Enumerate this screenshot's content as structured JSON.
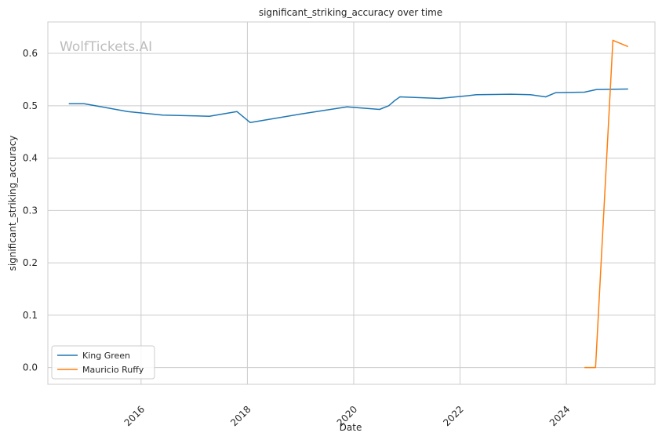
{
  "chart_data": {
    "type": "line",
    "title": "significant_striking_accuracy over time",
    "xlabel": "Date",
    "ylabel": "significant_striking_accuracy",
    "watermark": "WolfTickets.AI",
    "x_ticks": [
      "2016",
      "2018",
      "2020",
      "2022",
      "2024"
    ],
    "y_ticks": [
      "0.0",
      "0.1",
      "0.2",
      "0.3",
      "0.4",
      "0.5",
      "0.6"
    ],
    "xlim": [
      "2014-04-01",
      "2025-09-01"
    ],
    "ylim": [
      -0.032,
      0.66
    ],
    "grid": true,
    "legend_position": "lower-left",
    "series": [
      {
        "name": "King Green",
        "color": "#1f77b4",
        "points": [
          [
            "2014-08-23",
            0.504
          ],
          [
            "2014-12-06",
            0.504
          ],
          [
            "2015-10-01",
            0.489
          ],
          [
            "2016-05-29",
            0.482
          ],
          [
            "2017-04-15",
            0.48
          ],
          [
            "2017-10-21",
            0.489
          ],
          [
            "2018-01-20",
            0.468
          ],
          [
            "2018-12-29",
            0.484
          ],
          [
            "2019-11-16",
            0.498
          ],
          [
            "2020-06-27",
            0.493
          ],
          [
            "2020-08-29",
            0.5
          ],
          [
            "2020-10-10",
            0.51
          ],
          [
            "2020-11-14",
            0.517
          ],
          [
            "2021-08-14",
            0.514
          ],
          [
            "2022-02-19",
            0.519
          ],
          [
            "2022-04-23",
            0.521
          ],
          [
            "2022-12-17",
            0.522
          ],
          [
            "2023-04-29",
            0.521
          ],
          [
            "2023-08-12",
            0.517
          ],
          [
            "2023-10-21",
            0.525
          ],
          [
            "2024-05-04",
            0.526
          ],
          [
            "2024-07-27",
            0.531
          ],
          [
            "2025-03-01",
            0.532
          ]
        ]
      },
      {
        "name": "Mauricio Ruffy",
        "color": "#ff7f0e",
        "points": [
          [
            "2024-05-04",
            0.0
          ],
          [
            "2024-07-20",
            0.0
          ],
          [
            "2024-11-16",
            0.625
          ],
          [
            "2025-03-01",
            0.613
          ]
        ]
      }
    ]
  }
}
